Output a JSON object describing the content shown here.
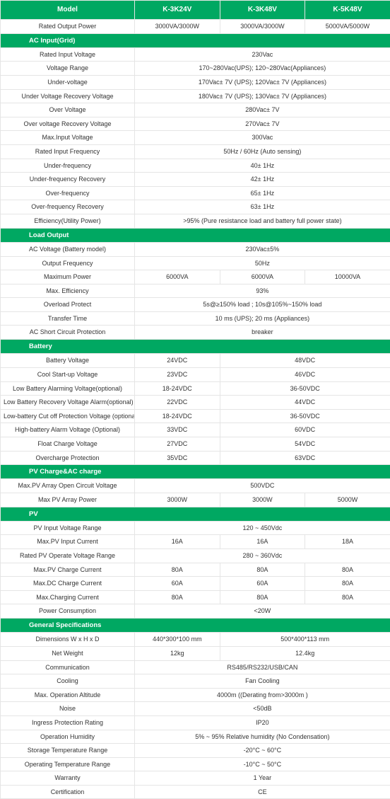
{
  "header": {
    "model": "Model",
    "m1": "K-3K24V",
    "m2": "K-3K48V",
    "m3": "K-5K48V"
  },
  "rows": [
    {
      "label": "Rated Output Power",
      "v": [
        "3000VA/3000W",
        "3000VA/3000W",
        "5000VA/5000W"
      ]
    },
    {
      "section": "AC Input(Grid)"
    },
    {
      "label": "Rated Input Voltage",
      "span": "230Vac"
    },
    {
      "label": "Voltage Range",
      "span": "170~280Vac(UPS); 120~280Vac(Appliances)"
    },
    {
      "label": "Under-voltage",
      "span": "170Vac± 7V (UPS); 120Vac± 7V (Appliances)"
    },
    {
      "label": "Under Voltage Recovery Voltage",
      "span": "180Vac± 7V (UPS); 130Vac± 7V (Appliances)"
    },
    {
      "label": "Over Voltage",
      "span": "280Vac± 7V"
    },
    {
      "label": "Over voltage Recovery Voltage",
      "span": "270Vac± 7V"
    },
    {
      "label": "Max.Input Voltage",
      "span": "300Vac"
    },
    {
      "label": "Rated Input Frequency",
      "span": "50Hz / 60Hz (Auto sensing)"
    },
    {
      "label": "Under-frequency",
      "span": "40± 1Hz"
    },
    {
      "label": "Under-frequency Recovery",
      "span": "42± 1Hz"
    },
    {
      "label": "Over-frequency",
      "span": "65± 1Hz"
    },
    {
      "label": "Over-frequency Recovery",
      "span": "63± 1Hz"
    },
    {
      "label": "Efficiency(Utility Power)",
      "span": ">95% (Pure resistance load and battery full power state)"
    },
    {
      "section": "Load Output"
    },
    {
      "label": "AC Voltage (Battery model)",
      "span": "230Vac±5%"
    },
    {
      "label": "Output Frequency",
      "span": "50Hz"
    },
    {
      "label": "Maximum Power",
      "v": [
        "6000VA",
        "6000VA",
        "10000VA"
      ]
    },
    {
      "label": "Max. Efficiency",
      "span": "93%"
    },
    {
      "label": "Overload Protect",
      "span": "5s@≥150% load ; 10s@105%~150% load"
    },
    {
      "label": "Transfer Time",
      "span": "10 ms (UPS); 20 ms (Appliances)"
    },
    {
      "label": "AC Short Circuit Protection",
      "span": "breaker"
    },
    {
      "section": "Battery"
    },
    {
      "label": "Battery Voltage",
      "v2": [
        "24VDC",
        "48VDC"
      ]
    },
    {
      "label": "Cool Start-up Voltage",
      "v2": [
        "23VDC",
        "46VDC"
      ]
    },
    {
      "label": "Low Battery Alarming Voltage(optional)",
      "v2": [
        "18-24VDC",
        "36-50VDC"
      ]
    },
    {
      "label": "Low Battery Recovery Voltage Alarm(optional)",
      "v2": [
        "22VDC",
        "44VDC"
      ]
    },
    {
      "label": "Low-battery Cut off Protection Voltage (optional)",
      "v2": [
        "18-24VDC",
        "36-50VDC"
      ]
    },
    {
      "label": "High-battery Alarm Voltage (Optional)",
      "v2": [
        "33VDC",
        "60VDC"
      ]
    },
    {
      "label": "Float Charge Voltage",
      "v2": [
        "27VDC",
        "54VDC"
      ]
    },
    {
      "label": "Overcharge Protection",
      "v2": [
        "35VDC",
        "63VDC"
      ]
    },
    {
      "section": "PV Charge&AC charge"
    },
    {
      "label": "Max.PV Array Open Circuit Voltage",
      "span": "500VDC"
    },
    {
      "label": "Max PV Array Power",
      "v": [
        "3000W",
        "3000W",
        "5000W"
      ]
    },
    {
      "section": "PV"
    },
    {
      "label": "PV Input Voltage Range",
      "span": "120 ~ 450Vdc"
    },
    {
      "label": "Max.PV Input Current",
      "v": [
        "16A",
        "16A",
        "18A"
      ]
    },
    {
      "label": "Rated PV Operate Voltage Range",
      "span": "280 ~ 360Vdc"
    },
    {
      "label": "Max.PV Charge Current",
      "v": [
        "80A",
        "80A",
        "80A"
      ]
    },
    {
      "label": "Max.DC Charge Current",
      "v": [
        "60A",
        "60A",
        "80A"
      ]
    },
    {
      "label": "Max.Charging Current",
      "v": [
        "80A",
        "80A",
        "80A"
      ]
    },
    {
      "label": "Power Consumption",
      "span": "<20W"
    },
    {
      "section": "General Specifications"
    },
    {
      "label": "Dimensions W x H x D",
      "v2": [
        "440*300*100 mm",
        "500*400*113 mm"
      ]
    },
    {
      "label": "Net Weight",
      "v2": [
        "12kg",
        "12.4kg"
      ]
    },
    {
      "label": "Communication",
      "span": "RS485/RS232/USB/CAN"
    },
    {
      "label": "Cooling",
      "span": "Fan Cooling"
    },
    {
      "label": "Max. Operation Altitude",
      "span": "4000m   ((Derating from>3000m )"
    },
    {
      "label": "Noise",
      "span": "<50dB"
    },
    {
      "label": "Ingress Protection Rating",
      "span": "IP20"
    },
    {
      "label": "Operation Humidity",
      "span": "5% ~ 95% Relative humidity (No Condensation)"
    },
    {
      "label": "Storage Temperature Range",
      "span": "-20°C ~ 60°C"
    },
    {
      "label": "Operating Temperature Range",
      "span": "-10°C ~ 50°C"
    },
    {
      "label": "Warranty",
      "span": "1 Year"
    },
    {
      "label": "Certification",
      "span": "CE"
    }
  ]
}
